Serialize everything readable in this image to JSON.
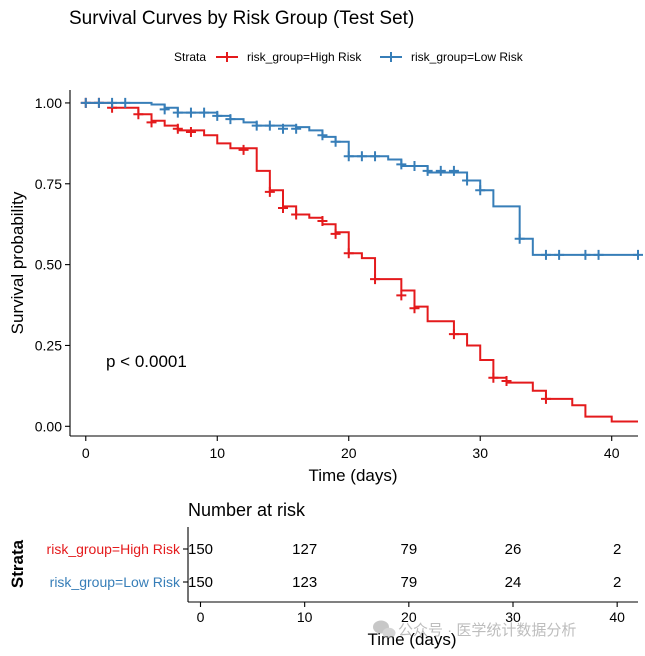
{
  "chart_data": [
    {
      "type": "line",
      "subtype": "kaplan-meier-step",
      "title": "Survival Curves by Risk Group (Test Set)",
      "xlabel": "Time (days)",
      "ylabel": "Survival probability",
      "xlim": [
        -1.2,
        42
      ],
      "ylim": [
        -0.03,
        1.04
      ],
      "x_ticks": [
        0,
        10,
        20,
        30,
        40
      ],
      "x_tick_labels": [
        "0",
        "10",
        "20",
        "30",
        "40"
      ],
      "y_ticks": [
        0,
        0.25,
        0.5,
        0.75,
        1.0
      ],
      "y_tick_labels": [
        "0.00",
        "0.25",
        "0.50",
        "0.75",
        "1.00"
      ],
      "legend_title": "Strata",
      "legend_position": "top",
      "annotation": "p < 0.0001",
      "series": [
        {
          "name": "risk_group=High Risk",
          "color": "#e41a1c",
          "steps": [
            [
              0,
              1.0
            ],
            [
              2,
              0.985
            ],
            [
              4,
              0.965
            ],
            [
              5,
              0.945
            ],
            [
              6,
              0.93
            ],
            [
              7,
              0.915
            ],
            [
              9,
              0.9
            ],
            [
              10,
              0.875
            ],
            [
              11,
              0.86
            ],
            [
              13,
              0.79
            ],
            [
              14,
              0.73
            ],
            [
              15,
              0.68
            ],
            [
              16,
              0.655
            ],
            [
              17,
              0.645
            ],
            [
              18,
              0.625
            ],
            [
              19,
              0.6
            ],
            [
              20,
              0.535
            ],
            [
              21,
              0.52
            ],
            [
              22,
              0.455
            ],
            [
              24,
              0.42
            ],
            [
              25,
              0.37
            ],
            [
              26,
              0.325
            ],
            [
              28,
              0.285
            ],
            [
              29,
              0.25
            ],
            [
              30,
              0.205
            ],
            [
              31,
              0.15
            ],
            [
              32,
              0.135
            ],
            [
              34,
              0.11
            ],
            [
              35,
              0.085
            ],
            [
              37,
              0.065
            ],
            [
              38,
              0.03
            ],
            [
              40,
              0.015
            ],
            [
              42,
              0.015
            ]
          ],
          "censored": [
            [
              0,
              1.0
            ],
            [
              1,
              1.0
            ],
            [
              2,
              0.985
            ],
            [
              4,
              0.965
            ],
            [
              5,
              0.94
            ],
            [
              7,
              0.92
            ],
            [
              8,
              0.91
            ],
            [
              12,
              0.855
            ],
            [
              14,
              0.725
            ],
            [
              15,
              0.675
            ],
            [
              16,
              0.655
            ],
            [
              18,
              0.635
            ],
            [
              19,
              0.595
            ],
            [
              20,
              0.535
            ],
            [
              22,
              0.455
            ],
            [
              24,
              0.405
            ],
            [
              25,
              0.365
            ],
            [
              28,
              0.285
            ],
            [
              31,
              0.15
            ],
            [
              32,
              0.14
            ],
            [
              35,
              0.085
            ]
          ]
        },
        {
          "name": "risk_group=Low Risk",
          "color": "#377eb8",
          "steps": [
            [
              0,
              1.0
            ],
            [
              5,
              0.995
            ],
            [
              6,
              0.985
            ],
            [
              7,
              0.97
            ],
            [
              10,
              0.96
            ],
            [
              11,
              0.95
            ],
            [
              12,
              0.94
            ],
            [
              13,
              0.93
            ],
            [
              16,
              0.925
            ],
            [
              17,
              0.915
            ],
            [
              18,
              0.895
            ],
            [
              19,
              0.88
            ],
            [
              20,
              0.835
            ],
            [
              23,
              0.825
            ],
            [
              24,
              0.805
            ],
            [
              25,
              0.805
            ],
            [
              26,
              0.785
            ],
            [
              29,
              0.76
            ],
            [
              30,
              0.73
            ],
            [
              31,
              0.68
            ],
            [
              33,
              0.58
            ],
            [
              34,
              0.53
            ],
            [
              42,
              0.53
            ]
          ],
          "censored": [
            [
              0,
              1.0
            ],
            [
              1,
              1.0
            ],
            [
              2,
              1.0
            ],
            [
              3,
              1.0
            ],
            [
              6,
              0.98
            ],
            [
              7,
              0.97
            ],
            [
              8,
              0.97
            ],
            [
              9,
              0.97
            ],
            [
              10,
              0.96
            ],
            [
              11,
              0.95
            ],
            [
              13,
              0.93
            ],
            [
              14,
              0.93
            ],
            [
              15,
              0.92
            ],
            [
              16,
              0.92
            ],
            [
              18,
              0.9
            ],
            [
              19,
              0.88
            ],
            [
              20,
              0.835
            ],
            [
              21,
              0.835
            ],
            [
              22,
              0.835
            ],
            [
              24,
              0.81
            ],
            [
              25,
              0.805
            ],
            [
              26,
              0.79
            ],
            [
              27,
              0.79
            ],
            [
              28,
              0.79
            ],
            [
              29,
              0.76
            ],
            [
              30,
              0.73
            ],
            [
              33,
              0.58
            ],
            [
              35,
              0.53
            ],
            [
              36,
              0.53
            ],
            [
              38,
              0.53
            ],
            [
              39,
              0.53
            ],
            [
              42,
              0.53
            ]
          ]
        }
      ]
    },
    {
      "type": "table",
      "title": "Number at risk",
      "xlabel": "Time (days)",
      "ylabel": "Strata",
      "times": [
        "0",
        "10",
        "20",
        "30",
        "40"
      ],
      "rows": [
        {
          "name": "risk_group=High Risk",
          "color": "#e41a1c",
          "values": [
            "150",
            "127",
            "79",
            "26",
            "2"
          ]
        },
        {
          "name": "risk_group=Low Risk",
          "color": "#377eb8",
          "values": [
            "150",
            "123",
            "79",
            "24",
            "2"
          ]
        }
      ]
    }
  ],
  "watermark": "公众号 · 医学统计数据分析"
}
